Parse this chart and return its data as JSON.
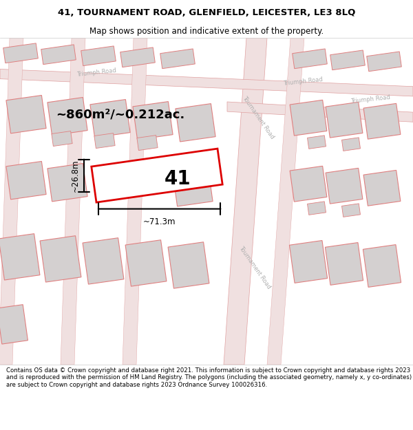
{
  "title_line1": "41, TOURNAMENT ROAD, GLENFIELD, LEICESTER, LE3 8LQ",
  "title_line2": "Map shows position and indicative extent of the property.",
  "footer_text": "Contains OS data © Crown copyright and database right 2021. This information is subject to Crown copyright and database rights 2023 and is reproduced with the permission of HM Land Registry. The polygons (including the associated geometry, namely x, y co-ordinates) are subject to Crown copyright and database rights 2023 Ordnance Survey 100026316.",
  "area_text": "~860m²/~0.212ac.",
  "width_label": "~71.3m",
  "height_label": "~26.8m",
  "property_number": "41",
  "map_bg": "#f7f0f0",
  "road_fill": "#f0e0e0",
  "road_edge": "#e0a0a0",
  "building_fill": "#d4d0d0",
  "building_stroke": "#e08080",
  "property_stroke": "#dd0000",
  "title_fontsize": 9.5,
  "subtitle_fontsize": 8.5,
  "footer_fontsize": 6.2,
  "area_fontsize": 13,
  "dim_fontsize": 8.5,
  "number_fontsize": 20
}
